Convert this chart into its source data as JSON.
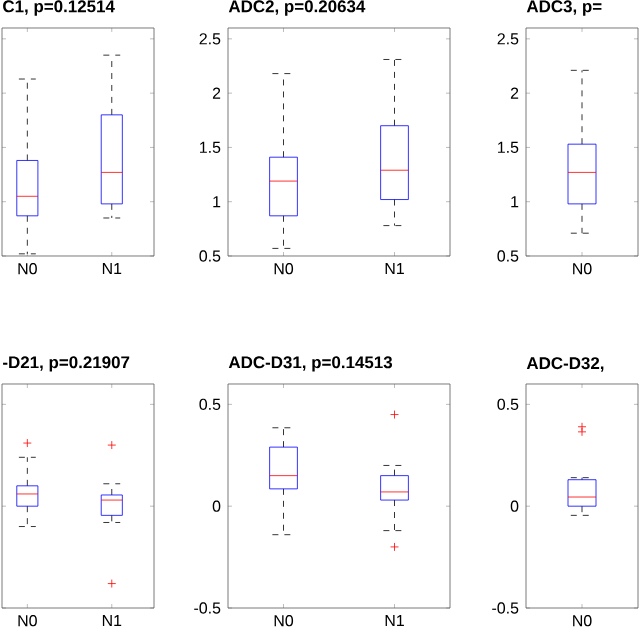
{
  "chart_data": [
    {
      "type": "box",
      "title": "C1, p=0.12514",
      "categories": [
        "N0",
        "N1"
      ],
      "ylim": [
        0.5,
        2.6
      ],
      "yticks": [
        0.5,
        1,
        1.5,
        2,
        2.5
      ],
      "tick_labels": "x",
      "series": [
        {
          "color": "#0000ff",
          "boxes": [
            {
              "low": 0.52,
              "q1": 0.87,
              "median": 1.05,
              "q3": 1.38,
              "high": 2.13
            },
            {
              "low": 0.85,
              "q1": 0.98,
              "median": 1.27,
              "q3": 1.8,
              "high": 2.35
            }
          ]
        }
      ]
    },
    {
      "type": "box",
      "title": "ADC2, p=0.20634",
      "categories": [
        "N0",
        "N1"
      ],
      "ylim": [
        0.5,
        2.6
      ],
      "yticks": [
        0.5,
        1,
        1.5,
        2,
        2.5
      ],
      "series": [
        {
          "color": "#0000ff",
          "boxes": [
            {
              "low": 0.57,
              "q1": 0.87,
              "median": 1.19,
              "q3": 1.41,
              "high": 2.18
            },
            {
              "low": 0.78,
              "q1": 1.02,
              "median": 1.29,
              "q3": 1.7,
              "high": 2.31
            }
          ]
        }
      ]
    },
    {
      "type": "box",
      "title": "ADC3, p=",
      "categories": [
        "N0"
      ],
      "ylim": [
        0.5,
        2.6
      ],
      "yticks": [
        0.5,
        1,
        1.5,
        2,
        2.5
      ],
      "series": [
        {
          "color": "#0000ff",
          "boxes": [
            {
              "low": 0.71,
              "q1": 0.98,
              "median": 1.27,
              "q3": 1.53,
              "high": 2.21
            }
          ]
        }
      ]
    },
    {
      "type": "box",
      "title": "-D21, p=0.21907",
      "categories": [
        "N0",
        "N1"
      ],
      "ylim": [
        -0.5,
        0.6
      ],
      "yticks": [
        -0.5,
        0,
        0.5
      ],
      "tick_labels": "x",
      "series": [
        {
          "color": "#0000ff",
          "boxes": [
            {
              "low": -0.1,
              "q1": 0.0,
              "median": 0.06,
              "q3": 0.1,
              "high": 0.24,
              "outliers": [
                0.31
              ]
            },
            {
              "low": -0.08,
              "q1": -0.045,
              "median": 0.03,
              "q3": 0.055,
              "high": 0.11,
              "outliers": [
                0.3,
                -0.38
              ]
            }
          ]
        }
      ]
    },
    {
      "type": "box",
      "title": "ADC-D31, p=0.14513",
      "categories": [
        "N0",
        "N1"
      ],
      "ylim": [
        -0.5,
        0.6
      ],
      "yticks": [
        -0.5,
        0,
        0.5
      ],
      "series": [
        {
          "color": "#0000ff",
          "boxes": [
            {
              "low": -0.14,
              "q1": 0.085,
              "median": 0.15,
              "q3": 0.29,
              "high": 0.385
            },
            {
              "low": -0.12,
              "q1": 0.03,
              "median": 0.07,
              "q3": 0.15,
              "high": 0.2,
              "outliers": [
                0.45,
                -0.2
              ]
            }
          ]
        }
      ]
    },
    {
      "type": "box",
      "title": "ADC-D32,",
      "categories": [
        "N0"
      ],
      "ylim": [
        -0.5,
        0.6
      ],
      "yticks": [
        -0.5,
        0,
        0.5
      ],
      "series": [
        {
          "color": "#0000ff",
          "boxes": [
            {
              "low": -0.045,
              "q1": 0.0,
              "median": 0.045,
              "q3": 0.13,
              "high": 0.14,
              "outliers": [
                0.39,
                0.365
              ]
            }
          ]
        }
      ]
    }
  ]
}
